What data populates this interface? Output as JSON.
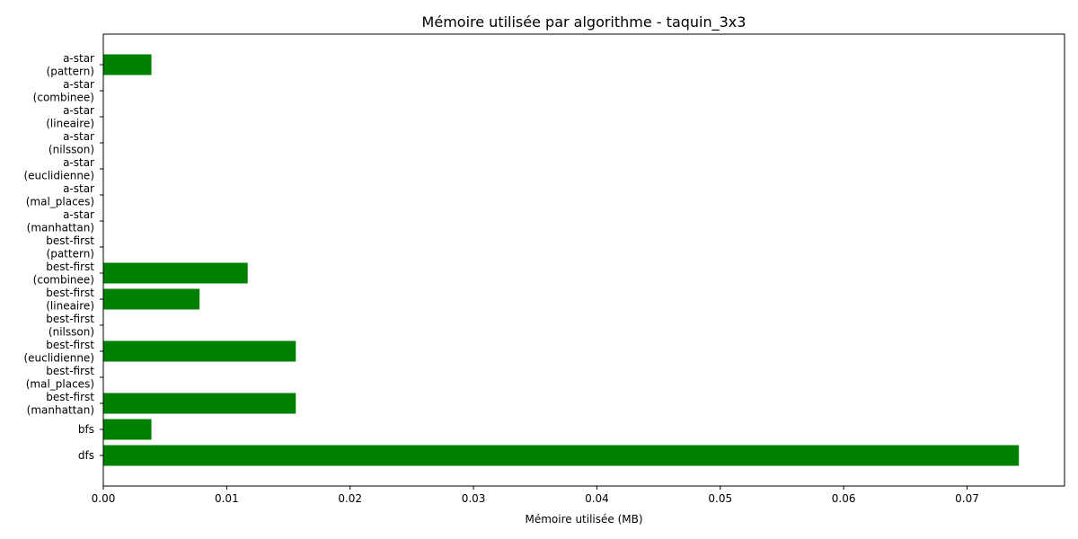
{
  "chart_data": {
    "type": "bar",
    "orientation": "horizontal",
    "title": "Mémoire utilisée par algorithme - taquin_3x3",
    "xlabel": "Mémoire utilisée (MB)",
    "ylabel": "",
    "xlim": [
      0,
      0.0779
    ],
    "xticks": [
      0.0,
      0.01,
      0.02,
      0.03,
      0.04,
      0.05,
      0.06,
      0.07
    ],
    "xtick_labels": [
      "0.00",
      "0.01",
      "0.02",
      "0.03",
      "0.04",
      "0.05",
      "0.06",
      "0.07"
    ],
    "bar_color": "#008000",
    "grid": false,
    "categories": [
      [
        "dfs"
      ],
      [
        "bfs"
      ],
      [
        "best-first",
        "(manhattan)"
      ],
      [
        "best-first",
        "(mal_places)"
      ],
      [
        "best-first",
        "(euclidienne)"
      ],
      [
        "best-first",
        "(nilsson)"
      ],
      [
        "best-first",
        "(lineaire)"
      ],
      [
        "best-first",
        "(combinee)"
      ],
      [
        "best-first",
        "(pattern)"
      ],
      [
        "a-star",
        "(manhattan)"
      ],
      [
        "a-star",
        "(mal_places)"
      ],
      [
        "a-star",
        "(euclidienne)"
      ],
      [
        "a-star",
        "(nilsson)"
      ],
      [
        "a-star",
        "(lineaire)"
      ],
      [
        "a-star",
        "(combinee)"
      ],
      [
        "a-star",
        "(pattern)"
      ]
    ],
    "values": [
      0.0742,
      0.0039,
      0.0156,
      0.0,
      0.0156,
      0.0,
      0.0078,
      0.0117,
      0.0,
      0.0,
      0.0,
      0.0,
      0.0,
      0.0,
      0.0,
      0.0039
    ]
  }
}
